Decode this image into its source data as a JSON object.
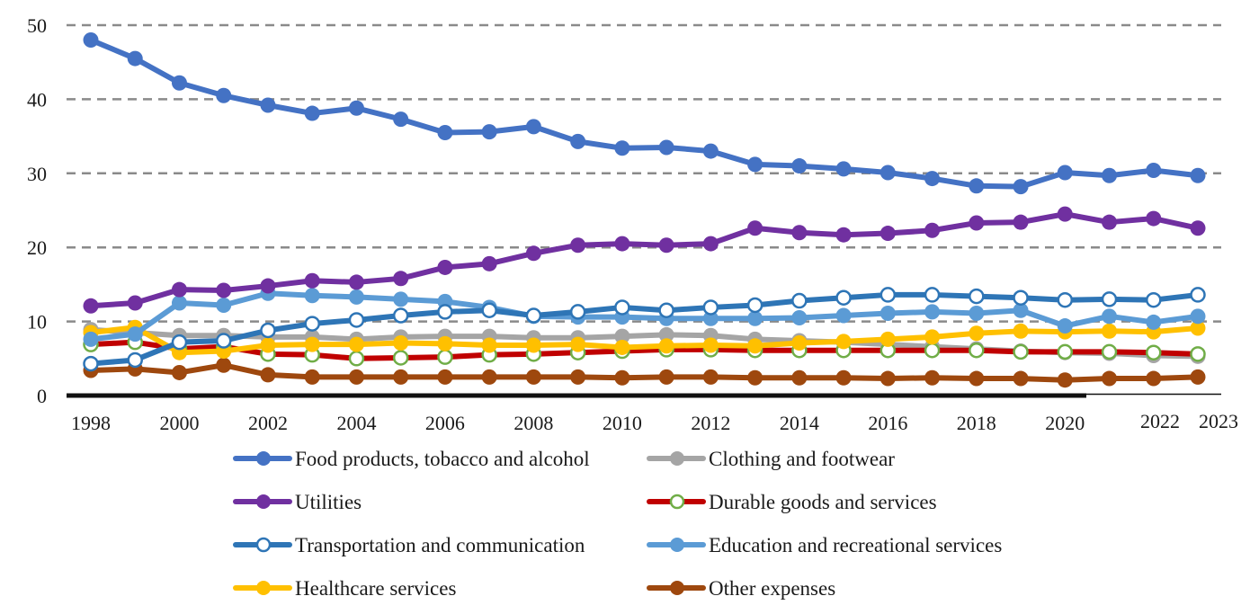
{
  "chart_data": {
    "type": "line",
    "title": "",
    "xlabel": "",
    "ylabel": "",
    "ylim": [
      0,
      50
    ],
    "yticks": [
      "0",
      "10",
      "20",
      "30",
      "40",
      "50"
    ],
    "grid": true,
    "legend_position": "bottom",
    "x": [
      1998,
      1999,
      2000,
      2001,
      2002,
      2003,
      2004,
      2005,
      2006,
      2007,
      2008,
      2009,
      2010,
      2011,
      2012,
      2013,
      2014,
      2015,
      2016,
      2017,
      2018,
      2019,
      2020,
      2021,
      2022,
      2023
    ],
    "xtick_labels": [
      {
        "year": 1998,
        "label": "1998"
      },
      {
        "year": 2000,
        "label": "2000"
      },
      {
        "year": 2002,
        "label": "2002"
      },
      {
        "year": 2004,
        "label": "2004"
      },
      {
        "year": 2006,
        "label": "2006"
      },
      {
        "year": 2008,
        "label": "2008"
      },
      {
        "year": 2010,
        "label": "2010"
      },
      {
        "year": 2012,
        "label": "2012"
      },
      {
        "year": 2014,
        "label": "2014"
      },
      {
        "year": 2016,
        "label": "2016"
      },
      {
        "year": 2018,
        "label": "2018"
      },
      {
        "year": 2020,
        "label": "2020"
      },
      {
        "year": 2022,
        "label": "2022"
      },
      {
        "year": 2023,
        "label": "2023"
      }
    ],
    "series": [
      {
        "name": "Food products, tobacco and alcohol",
        "line_color": "#4472C4",
        "marker_fill": "#4472C4",
        "marker_stroke": "#4472C4",
        "values": [
          48.0,
          45.5,
          42.2,
          40.5,
          39.2,
          38.1,
          38.8,
          37.3,
          35.5,
          35.6,
          36.3,
          34.3,
          33.4,
          33.5,
          33.0,
          31.2,
          31.0,
          30.6,
          30.1,
          29.3,
          28.3,
          28.2,
          30.1,
          29.7,
          30.4,
          29.7
        ]
      },
      {
        "name": "Clothing and footwear",
        "line_color": "#A5A5A5",
        "marker_fill": "#A5A5A5",
        "marker_stroke": "#A5A5A5",
        "values": [
          8.9,
          8.5,
          8.1,
          8.1,
          7.9,
          7.9,
          7.6,
          7.9,
          8.0,
          8.0,
          7.8,
          7.8,
          8.0,
          8.2,
          8.1,
          7.6,
          7.4,
          7.2,
          6.9,
          6.6,
          6.3,
          6.0,
          5.8,
          5.7,
          5.4,
          5.3
        ]
      },
      {
        "name": "Utilities",
        "line_color": "#7030A0",
        "marker_fill": "#7030A0",
        "marker_stroke": "#7030A0",
        "values": [
          12.1,
          12.5,
          14.3,
          14.2,
          14.8,
          15.5,
          15.3,
          15.8,
          17.3,
          17.8,
          19.2,
          20.3,
          20.5,
          20.3,
          20.5,
          22.6,
          22.0,
          21.7,
          21.9,
          22.3,
          23.3,
          23.4,
          24.5,
          23.4,
          23.9,
          22.6
        ]
      },
      {
        "name": "Durable goods and services",
        "line_color": "#C00000",
        "marker_fill": "#FFFFFF",
        "marker_stroke": "#70AD47",
        "values": [
          6.9,
          7.2,
          6.3,
          6.6,
          5.6,
          5.5,
          5.0,
          5.1,
          5.2,
          5.5,
          5.6,
          5.8,
          6.0,
          6.2,
          6.2,
          6.1,
          6.1,
          6.1,
          6.1,
          6.1,
          6.1,
          5.9,
          5.9,
          5.9,
          5.8,
          5.6
        ]
      },
      {
        "name": "Transportation and communication",
        "line_color": "#2E75B6",
        "marker_fill": "#FFFFFF",
        "marker_stroke": "#2E75B6",
        "values": [
          4.3,
          4.8,
          7.2,
          7.4,
          8.8,
          9.7,
          10.2,
          10.8,
          11.3,
          11.5,
          10.8,
          11.3,
          11.9,
          11.5,
          11.9,
          12.2,
          12.8,
          13.2,
          13.6,
          13.6,
          13.4,
          13.2,
          12.9,
          13.0,
          12.9,
          13.6
        ]
      },
      {
        "name": "Education and recreational services",
        "line_color": "#5B9BD5",
        "marker_fill": "#5B9BD5",
        "marker_stroke": "#5B9BD5",
        "values": [
          7.6,
          8.3,
          12.5,
          12.2,
          13.8,
          13.5,
          13.3,
          13.0,
          12.7,
          11.9,
          10.7,
          10.6,
          10.6,
          10.4,
          10.4,
          10.4,
          10.5,
          10.8,
          11.1,
          11.3,
          11.1,
          11.5,
          9.4,
          10.7,
          9.9,
          10.7
        ]
      },
      {
        "name": "Healthcare services",
        "line_color": "#FFC000",
        "marker_fill": "#FFC000",
        "marker_stroke": "#FFC000",
        "values": [
          8.5,
          9.2,
          5.8,
          6.0,
          6.8,
          6.9,
          6.9,
          7.1,
          7.0,
          6.8,
          6.8,
          6.9,
          6.5,
          6.7,
          6.8,
          6.7,
          7.1,
          7.3,
          7.6,
          7.9,
          8.4,
          8.7,
          8.6,
          8.7,
          8.6,
          9.1
        ]
      },
      {
        "name": "Other expenses",
        "line_color": "#9E480E",
        "marker_fill": "#9E480E",
        "marker_stroke": "#9E480E",
        "values": [
          3.4,
          3.6,
          3.1,
          4.1,
          2.8,
          2.5,
          2.5,
          2.5,
          2.5,
          2.5,
          2.5,
          2.5,
          2.4,
          2.5,
          2.5,
          2.4,
          2.4,
          2.4,
          2.3,
          2.4,
          2.3,
          2.3,
          2.1,
          2.3,
          2.3,
          2.5
        ]
      }
    ],
    "legend_order": [
      0,
      1,
      2,
      3,
      4,
      5,
      6,
      7
    ]
  }
}
